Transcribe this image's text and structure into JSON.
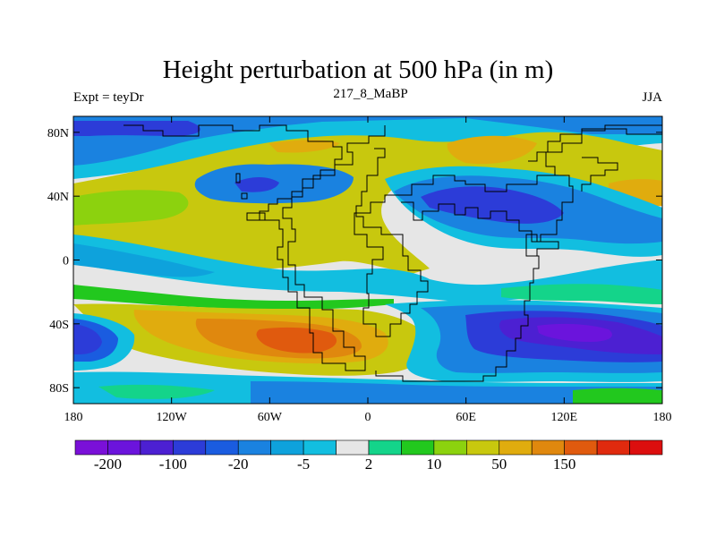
{
  "title": "Height perturbation at 500 hPa (in m)",
  "left_label": "Expt = teyDr",
  "center_label": "217_8_MaBP",
  "right_label": "JJA",
  "lat_ticks": [
    {
      "value": 80,
      "label": "80N"
    },
    {
      "value": 40,
      "label": "40N"
    },
    {
      "value": 0,
      "label": "0"
    },
    {
      "value": -40,
      "label": "40S"
    },
    {
      "value": -80,
      "label": "80S"
    }
  ],
  "lon_ticks": [
    {
      "value": -180,
      "label": "180"
    },
    {
      "value": -120,
      "label": "120W"
    },
    {
      "value": -60,
      "label": "60W"
    },
    {
      "value": 0,
      "label": "0"
    },
    {
      "value": 60,
      "label": "60E"
    },
    {
      "value": 120,
      "label": "120E"
    },
    {
      "value": 180,
      "label": "180"
    }
  ],
  "colorbar": {
    "colors": [
      "#7a10d8",
      "#6b14dc",
      "#4c20d2",
      "#2c3cd8",
      "#1a5ce0",
      "#1a82e0",
      "#0ea2dc",
      "#12bee0",
      "#e6e6e6",
      "#14d48a",
      "#22c81e",
      "#8cd20e",
      "#c8c80e",
      "#e0ac0e",
      "#e0880e",
      "#e05a0e",
      "#e02a0e",
      "#dc0e0e"
    ],
    "labels": [
      {
        "after_box": 1,
        "text": "-200"
      },
      {
        "after_box": 3,
        "text": "-100"
      },
      {
        "after_box": 5,
        "text": "-20"
      },
      {
        "after_box": 7,
        "text": "-5"
      },
      {
        "after_box": 9,
        "text": "2"
      },
      {
        "after_box": 11,
        "text": "10"
      },
      {
        "after_box": 13,
        "text": "50"
      },
      {
        "after_box": 15,
        "text": "150"
      }
    ]
  },
  "map": {
    "lon_range": [
      -180,
      180
    ],
    "lat_range": [
      -90,
      90
    ],
    "background_color": "#e6e6e6"
  }
}
